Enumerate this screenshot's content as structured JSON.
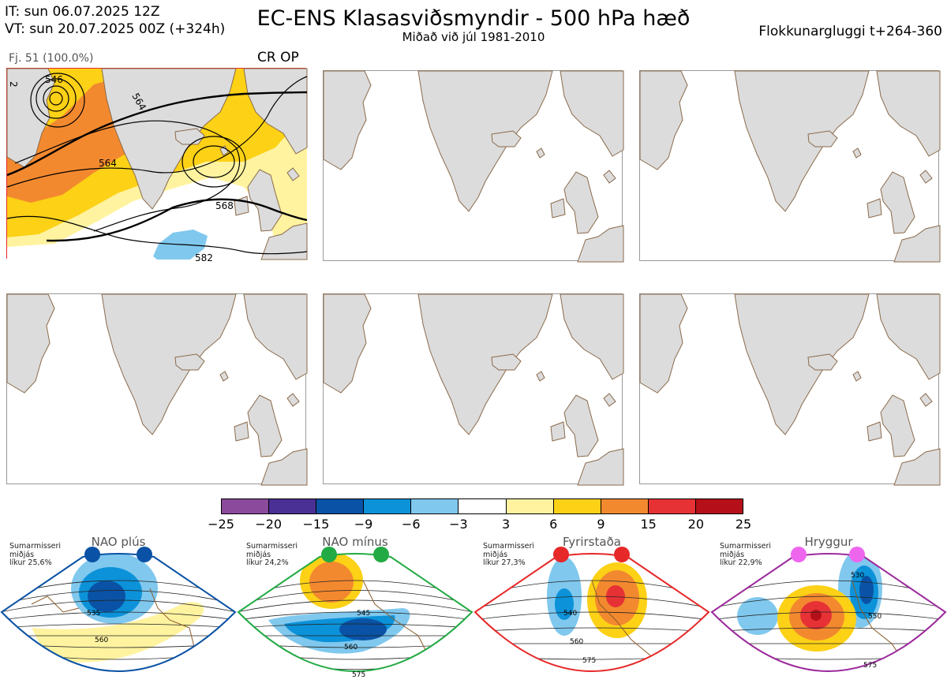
{
  "header": {
    "it_line": "IT: sun 06.07.2025 12Z",
    "vt_line": "VT: sun 20.07.2025 00Z  (+324h)",
    "title": "EC-ENS Klasasviðsmyndir - 500 hPa hæð",
    "subtitle": "Miðað við júl 1981-2010",
    "window": "Flokkunargluggi t+264-360"
  },
  "cluster": {
    "count_label": "Fj. 51 (100.0%)",
    "type_label": "CR OP",
    "contour_labels": [
      "546",
      "564",
      "564",
      "568",
      "582",
      "2"
    ]
  },
  "colorbar": {
    "colors": [
      "#8b4a9c",
      "#4a2f94",
      "#0a52a5",
      "#0c92d9",
      "#80c8ee",
      "#ffffff",
      "#fff3a0",
      "#fcd116",
      "#f3892f",
      "#e63235",
      "#b51019"
    ],
    "ticks": [
      "−25",
      "−20",
      "−15",
      "−9",
      "−6",
      "−3",
      "3",
      "6",
      "9",
      "15",
      "20",
      "25"
    ]
  },
  "regimes": [
    {
      "name": "NAO plús",
      "season": "Sumarmisseri",
      "type": "miðjás",
      "prob": "líkur 25,6%",
      "color": "#0a52a5",
      "labels": [
        "535",
        "560"
      ]
    },
    {
      "name": "NAO mínus",
      "season": "Sumarmisseri",
      "type": "miðjás",
      "prob": "líkur 24,2%",
      "color": "#22aa44",
      "labels": [
        "545",
        "560",
        "575"
      ]
    },
    {
      "name": "Fyrirstaða",
      "season": "Sumarmisseri",
      "type": "miðjás",
      "prob": "líkur 27,3%",
      "color": "#e62828",
      "labels": [
        "540",
        "560",
        "575"
      ]
    },
    {
      "name": "Hryggur",
      "season": "Sumarmisseri",
      "type": "miðjás",
      "prob": "líkur 22,9%",
      "color": "#9c2a9c",
      "labels": [
        "530",
        "550",
        "575"
      ]
    }
  ]
}
